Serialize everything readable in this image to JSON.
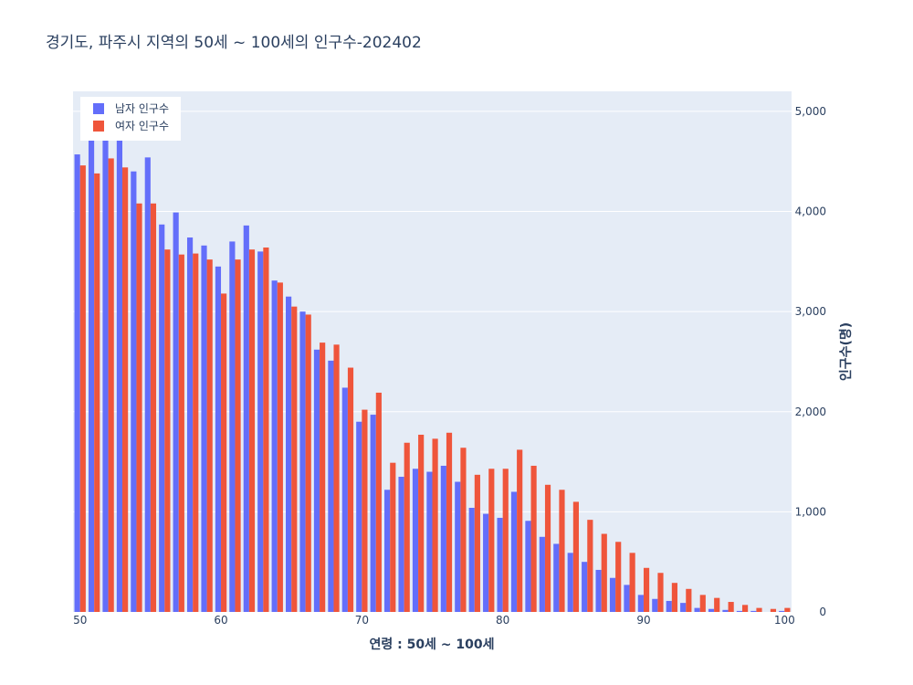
{
  "title": "경기도, 파주시 지역의 50세 ~ 100세의 인구수-202402",
  "chart_data": {
    "type": "bar",
    "title": "경기도, 파주시 지역의 50세 ~ 100세의 인구수-202402",
    "xlabel": "연령 : 50세 ~ 100세",
    "ylabel": "인구수(명)",
    "x": [
      50,
      51,
      52,
      53,
      54,
      55,
      56,
      57,
      58,
      59,
      60,
      61,
      62,
      63,
      64,
      65,
      66,
      67,
      68,
      69,
      70,
      71,
      72,
      73,
      74,
      75,
      76,
      77,
      78,
      79,
      80,
      81,
      82,
      83,
      84,
      85,
      86,
      87,
      88,
      89,
      90,
      91,
      92,
      93,
      94,
      95,
      96,
      97,
      98,
      99,
      100
    ],
    "xlim": [
      49.5,
      100.5
    ],
    "ylim": [
      0,
      5200
    ],
    "x_ticks": [
      50,
      60,
      70,
      80,
      90,
      100
    ],
    "y_ticks": [
      0,
      1000,
      2000,
      3000,
      4000,
      5000
    ],
    "y_tick_labels": [
      "0",
      "1,000",
      "2,000",
      "3,000",
      "4,000",
      "5,000"
    ],
    "y_axis_side": "right",
    "grid": true,
    "legend_position": "top-left",
    "series": [
      {
        "name": "남자 인구수",
        "color": "#636efa",
        "values": [
          4570,
          4720,
          4760,
          4720,
          4400,
          4540,
          3870,
          3990,
          3740,
          3660,
          3450,
          3700,
          3860,
          3600,
          3310,
          3150,
          3000,
          2620,
          2510,
          2240,
          1900,
          1970,
          1220,
          1350,
          1430,
          1400,
          1460,
          1300,
          1040,
          980,
          940,
          1200,
          910,
          750,
          680,
          590,
          500,
          420,
          340,
          270,
          170,
          130,
          110,
          90,
          40,
          30,
          20,
          10,
          10,
          0,
          10
        ]
      },
      {
        "name": "여자 인구수",
        "color": "#ef553b",
        "values": [
          4460,
          4380,
          4530,
          4440,
          4080,
          4080,
          3620,
          3570,
          3580,
          3520,
          3180,
          3520,
          3620,
          3640,
          3290,
          3050,
          2970,
          2690,
          2670,
          2440,
          2020,
          2190,
          1490,
          1690,
          1770,
          1730,
          1790,
          1640,
          1370,
          1430,
          1430,
          1620,
          1460,
          1270,
          1220,
          1100,
          920,
          780,
          700,
          590,
          440,
          390,
          290,
          230,
          170,
          140,
          100,
          70,
          40,
          30,
          40
        ]
      }
    ]
  }
}
